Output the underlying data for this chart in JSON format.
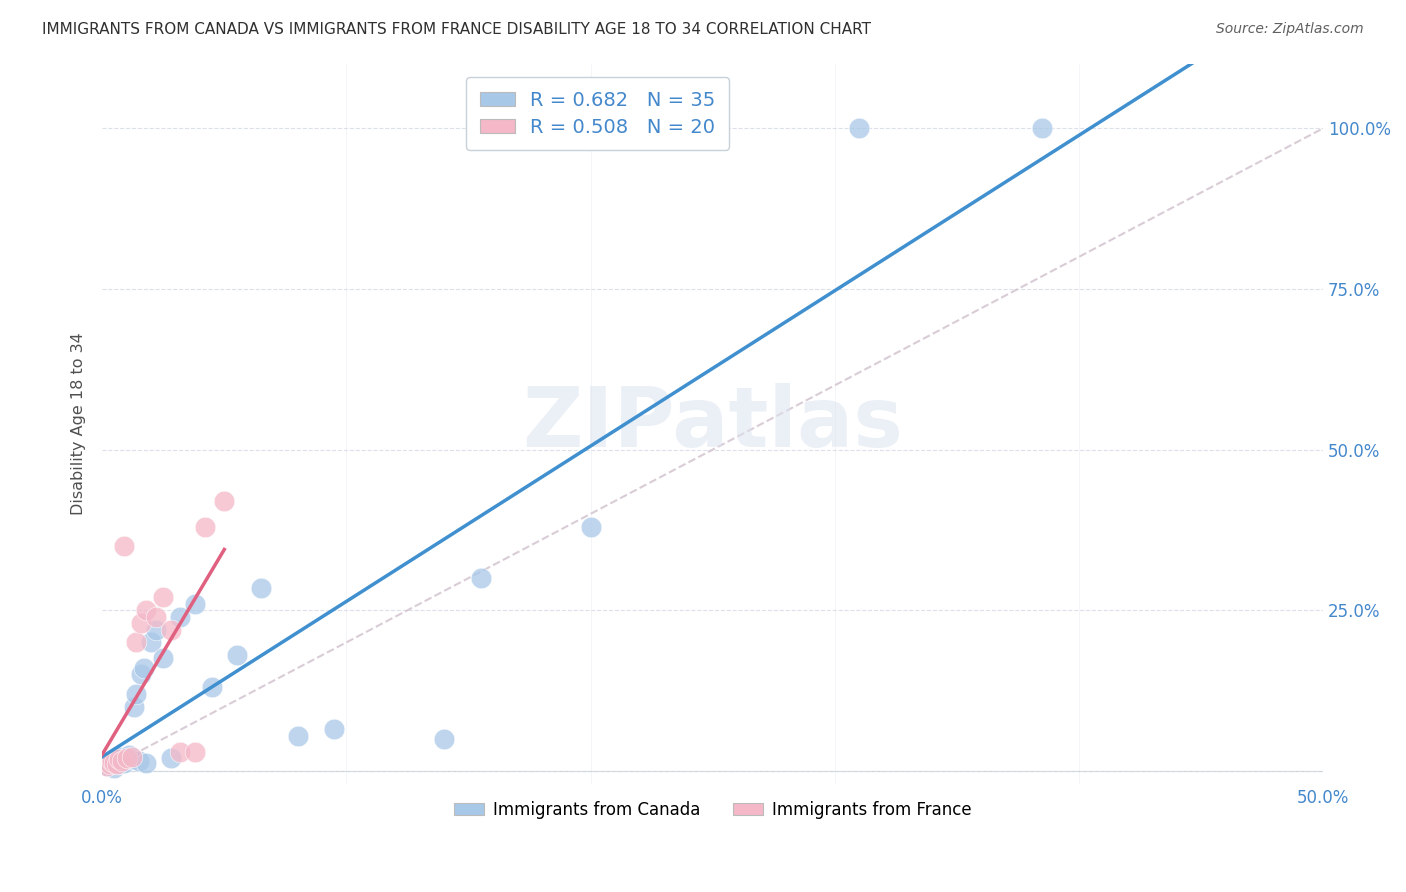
{
  "title": "IMMIGRANTS FROM CANADA VS IMMIGRANTS FROM FRANCE DISABILITY AGE 18 TO 34 CORRELATION CHART",
  "source": "Source: ZipAtlas.com",
  "ylabel": "Disability Age 18 to 34",
  "xlim": [
    0.0,
    0.5
  ],
  "ylim": [
    -0.02,
    1.1
  ],
  "canada_color": "#a8c8e8",
  "france_color": "#f4b8c8",
  "canada_line_color": "#4090d0",
  "france_line_color": "#e06080",
  "diagonal_color": "#d0c0cc",
  "R_canada": 0.682,
  "N_canada": 35,
  "R_france": 0.508,
  "N_france": 20,
  "watermark": "ZIPatlas",
  "canada_x": [
    0.002,
    0.003,
    0.004,
    0.005,
    0.005,
    0.006,
    0.007,
    0.007,
    0.008,
    0.009,
    0.01,
    0.011,
    0.012,
    0.013,
    0.014,
    0.015,
    0.016,
    0.017,
    0.018,
    0.02,
    0.022,
    0.025,
    0.028,
    0.032,
    0.038,
    0.045,
    0.055,
    0.065,
    0.08,
    0.095,
    0.14,
    0.155,
    0.2,
    0.31,
    0.385
  ],
  "canada_y": [
    0.008,
    0.012,
    0.01,
    0.015,
    0.005,
    0.018,
    0.01,
    0.022,
    0.015,
    0.012,
    0.02,
    0.025,
    0.018,
    0.1,
    0.12,
    0.015,
    0.15,
    0.16,
    0.012,
    0.2,
    0.22,
    0.175,
    0.02,
    0.24,
    0.26,
    0.13,
    0.18,
    0.285,
    0.055,
    0.065,
    0.05,
    0.3,
    0.38,
    1.0,
    1.0
  ],
  "france_x": [
    0.002,
    0.003,
    0.004,
    0.005,
    0.006,
    0.007,
    0.008,
    0.009,
    0.01,
    0.012,
    0.014,
    0.016,
    0.018,
    0.022,
    0.025,
    0.028,
    0.032,
    0.038,
    0.042,
    0.05
  ],
  "france_y": [
    0.008,
    0.01,
    0.015,
    0.012,
    0.01,
    0.018,
    0.015,
    0.35,
    0.02,
    0.022,
    0.2,
    0.23,
    0.25,
    0.24,
    0.27,
    0.22,
    0.03,
    0.03,
    0.38,
    0.42
  ]
}
